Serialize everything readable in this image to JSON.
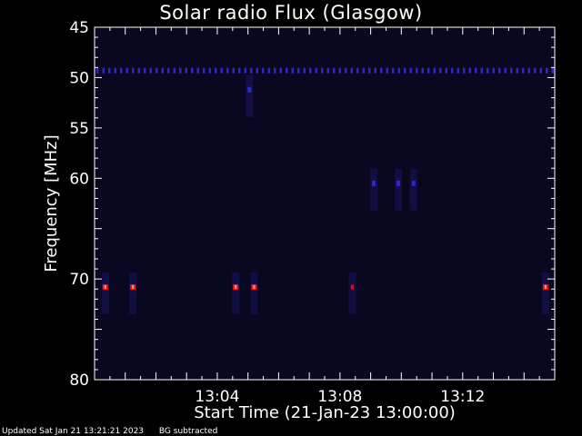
{
  "chart_data": {
    "type": "heatmap",
    "title": "Solar radio Flux (Glasgow)",
    "xlabel": "Start Time (21-Jan-23 13:00:00)",
    "ylabel": "Frequency [MHz]",
    "xlim_minutes": [
      0.0,
      15.0
    ],
    "ylim": [
      45,
      80
    ],
    "y_scale": "linear-inverted",
    "x_ticks": [
      {
        "minute": 4,
        "label": "13:04"
      },
      {
        "minute": 8,
        "label": "13:08"
      },
      {
        "minute": 12,
        "label": "13:12"
      }
    ],
    "y_ticks": [
      {
        "value": 45,
        "label": "45"
      },
      {
        "value": 50,
        "label": "50"
      },
      {
        "value": 55,
        "label": "55"
      },
      {
        "value": 60,
        "label": "60"
      },
      {
        "value": 70,
        "label": "70"
      },
      {
        "value": 80,
        "label": "80"
      }
    ],
    "colormap": [
      "#000000",
      "#1a0a5a",
      "#3030ff",
      "#ff1010",
      "#ffffff"
    ],
    "background_color": "#0a0820",
    "features": [
      {
        "kind": "band",
        "freq_mhz": 49.3,
        "minute_start": 0.0,
        "minute_end": 15.0,
        "intensity": 0.55
      },
      {
        "kind": "spot",
        "freq_mhz": 70.8,
        "minute": 0.35,
        "intensity": 0.9
      },
      {
        "kind": "spot",
        "freq_mhz": 70.8,
        "minute": 1.25,
        "intensity": 0.8
      },
      {
        "kind": "spot",
        "freq_mhz": 70.8,
        "minute": 4.6,
        "intensity": 1.0
      },
      {
        "kind": "spot",
        "freq_mhz": 70.8,
        "minute": 5.2,
        "intensity": 0.95
      },
      {
        "kind": "spot",
        "freq_mhz": 70.8,
        "minute": 8.4,
        "intensity": 0.6
      },
      {
        "kind": "spot",
        "freq_mhz": 70.8,
        "minute": 14.7,
        "intensity": 0.95
      },
      {
        "kind": "spot",
        "freq_mhz": 51.2,
        "minute": 5.05,
        "intensity": 0.45
      },
      {
        "kind": "spot",
        "freq_mhz": 60.5,
        "minute": 9.1,
        "intensity": 0.3
      },
      {
        "kind": "spot",
        "freq_mhz": 60.5,
        "minute": 9.9,
        "intensity": 0.3
      },
      {
        "kind": "spot",
        "freq_mhz": 60.5,
        "minute": 10.4,
        "intensity": 0.3
      }
    ]
  },
  "footer": {
    "updated": "Updated Sat Jan 21 13:21:21 2023",
    "note": "BG subtracted"
  }
}
